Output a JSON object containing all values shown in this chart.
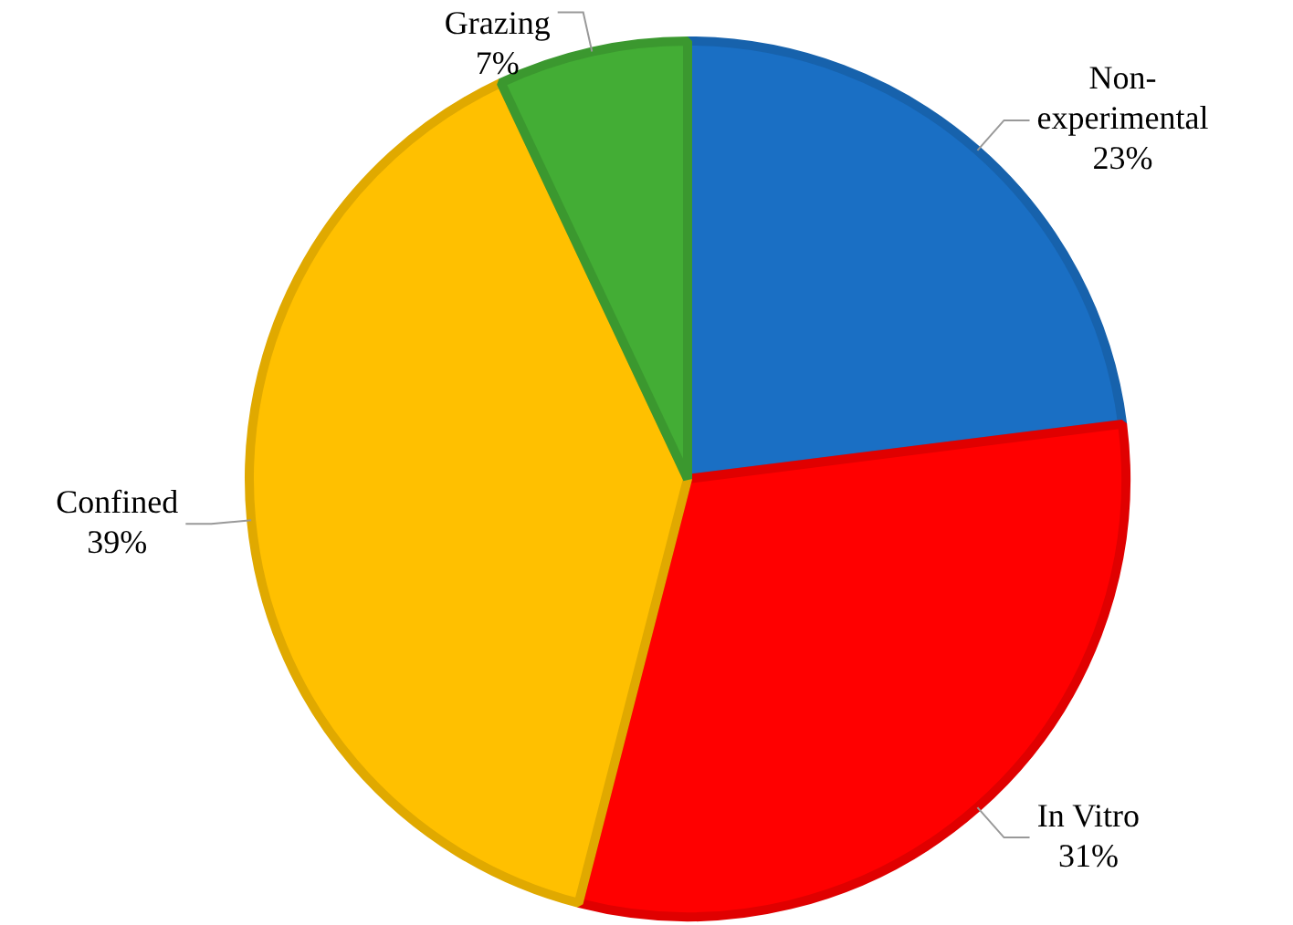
{
  "chart_data": {
    "type": "pie",
    "categories": [
      "Non-experimental",
      "In Vitro",
      "Confined",
      "Grazing"
    ],
    "values": [
      23,
      31,
      39,
      7
    ],
    "value_labels": [
      "23%",
      "31%",
      "39%",
      "7%"
    ],
    "colors": [
      "#1a6fc4",
      "#ff0000",
      "#ffc000",
      "#43ad35"
    ],
    "legend": false
  }
}
